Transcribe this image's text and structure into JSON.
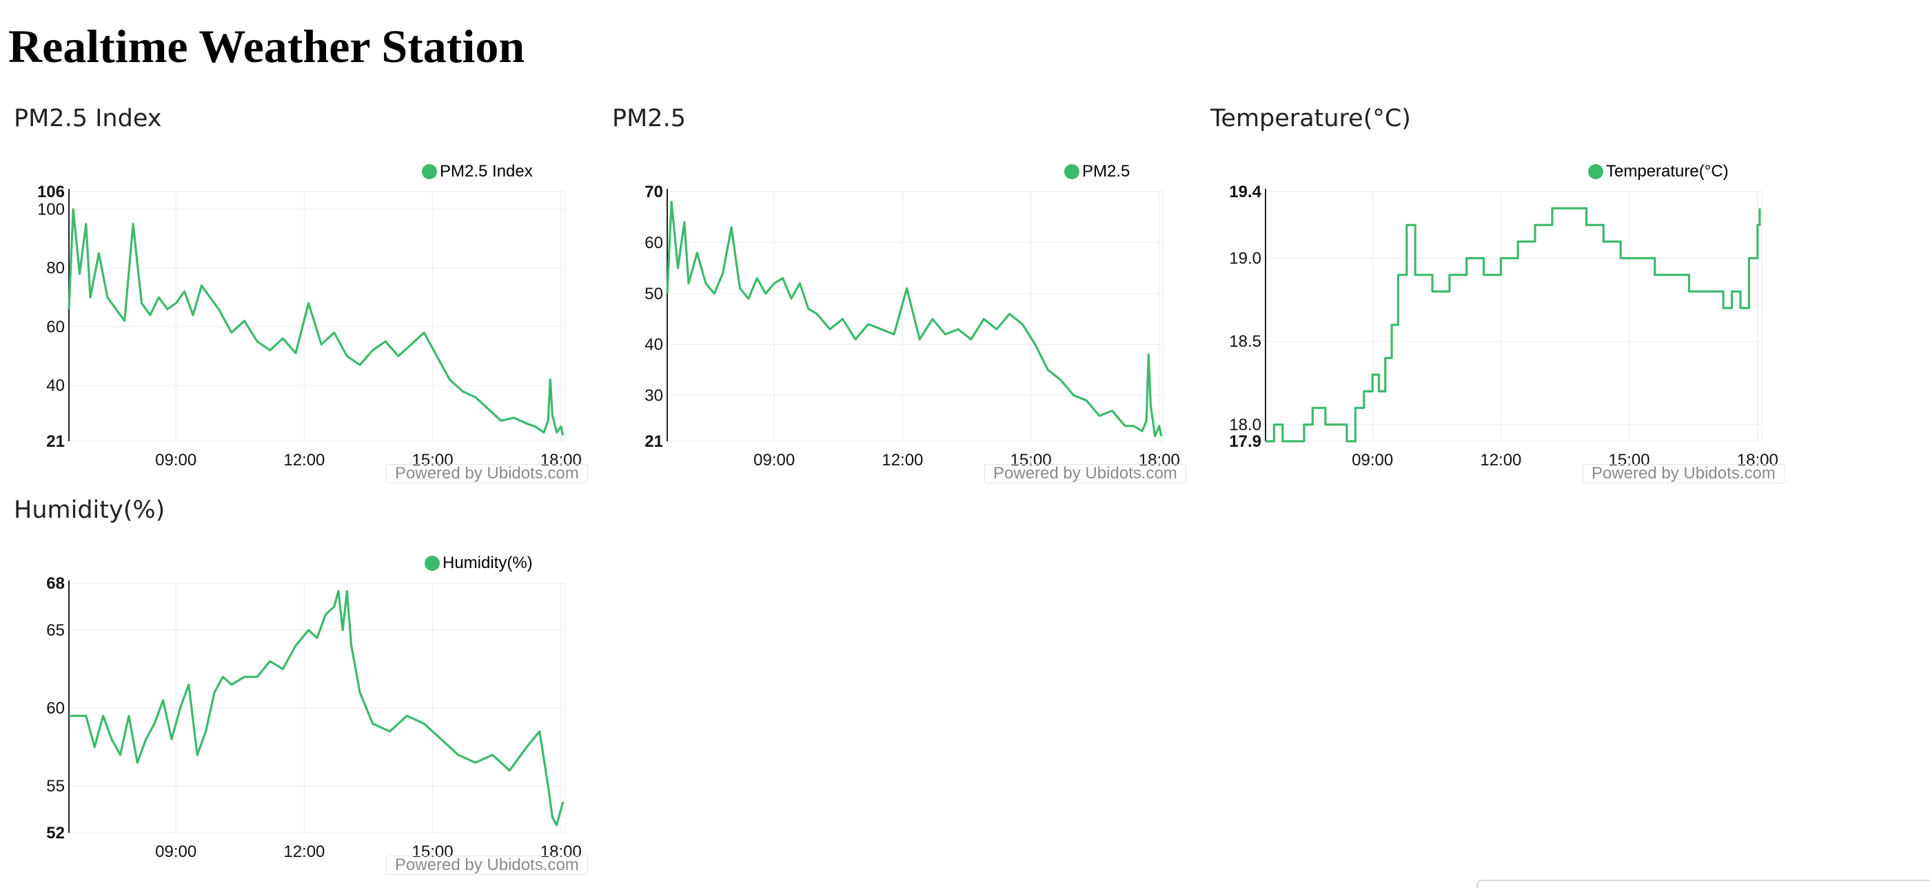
{
  "page": {
    "title": "Realtime Weather Station"
  },
  "colors": {
    "line": "#3cba6b",
    "grid": "#f0f0f0",
    "axis": "#222222"
  },
  "widgets": [
    {
      "title": "PM2.5 Index",
      "legend": "PM2.5 Index",
      "powered_by": "Powered by Ubidots.com"
    },
    {
      "title": "PM2.5",
      "legend": "PM2.5",
      "powered_by": "Powered by Ubidots.com"
    },
    {
      "title": "Temperature(°C)",
      "legend": "Temperature(°C)",
      "powered_by": "Powered by Ubidots.com"
    },
    {
      "title": "Humidity(%)",
      "legend": "Humidity(%)",
      "powered_by": "Powered by Ubidots.com"
    }
  ],
  "chart_data": [
    {
      "type": "line",
      "title": "PM2.5 Index",
      "xlim": [
        6.5,
        18.1
      ],
      "ylim": [
        21,
        106
      ],
      "x_ticks": [
        "09:00",
        "12:00",
        "15:00",
        "18:00"
      ],
      "x_tick_values": [
        9,
        12,
        15,
        18
      ],
      "y_ticks": [
        21,
        40,
        60,
        80,
        100,
        106
      ],
      "y_tick_bold": [
        21,
        106
      ],
      "grid": true,
      "legend_position": "top-right",
      "series": [
        {
          "name": "PM2.5 Index",
          "x": [
            6.5,
            6.6,
            6.75,
            6.9,
            7.0,
            7.2,
            7.4,
            7.6,
            7.8,
            8.0,
            8.2,
            8.4,
            8.6,
            8.8,
            9.0,
            9.2,
            9.4,
            9.6,
            9.8,
            10.0,
            10.3,
            10.6,
            10.9,
            11.2,
            11.5,
            11.8,
            12.1,
            12.4,
            12.7,
            13.0,
            13.3,
            13.6,
            13.9,
            14.2,
            14.5,
            14.8,
            15.1,
            15.4,
            15.7,
            16.0,
            16.3,
            16.6,
            16.9,
            17.2,
            17.4,
            17.6,
            17.7,
            17.75,
            17.8,
            17.9,
            18.0,
            18.05
          ],
          "y": [
            66,
            100,
            78,
            95,
            70,
            85,
            70,
            66,
            62,
            95,
            68,
            64,
            70,
            66,
            68,
            72,
            64,
            74,
            70,
            66,
            58,
            62,
            55,
            52,
            56,
            51,
            68,
            54,
            58,
            50,
            47,
            52,
            55,
            50,
            54,
            58,
            50,
            42,
            38,
            36,
            32,
            28,
            29,
            27,
            26,
            24,
            28,
            42,
            30,
            24,
            26,
            23
          ]
        }
      ]
    },
    {
      "type": "line",
      "title": "PM2.5",
      "xlim": [
        6.5,
        18.1
      ],
      "ylim": [
        21,
        70
      ],
      "x_ticks": [
        "09:00",
        "12:00",
        "15:00",
        "18:00"
      ],
      "x_tick_values": [
        9,
        12,
        15,
        18
      ],
      "y_ticks": [
        21,
        30,
        40,
        50,
        60,
        70
      ],
      "y_tick_bold": [
        21,
        70
      ],
      "grid": true,
      "legend_position": "top-right",
      "series": [
        {
          "name": "PM2.5",
          "x": [
            6.5,
            6.6,
            6.75,
            6.9,
            7.0,
            7.2,
            7.4,
            7.6,
            7.8,
            8.0,
            8.2,
            8.4,
            8.6,
            8.8,
            9.0,
            9.2,
            9.4,
            9.6,
            9.8,
            10.0,
            10.3,
            10.6,
            10.9,
            11.2,
            11.5,
            11.8,
            12.1,
            12.4,
            12.7,
            13.0,
            13.3,
            13.6,
            13.9,
            14.2,
            14.5,
            14.8,
            15.1,
            15.4,
            15.7,
            16.0,
            16.3,
            16.6,
            16.9,
            17.2,
            17.4,
            17.6,
            17.7,
            17.75,
            17.8,
            17.9,
            18.0,
            18.05
          ],
          "y": [
            50,
            68,
            55,
            64,
            52,
            58,
            52,
            50,
            54,
            63,
            51,
            49,
            53,
            50,
            52,
            53,
            49,
            52,
            47,
            46,
            43,
            45,
            41,
            44,
            43,
            42,
            51,
            41,
            45,
            42,
            43,
            41,
            45,
            43,
            46,
            44,
            40,
            35,
            33,
            30,
            29,
            26,
            27,
            24,
            24,
            23,
            25,
            38,
            28,
            22,
            24,
            22
          ]
        }
      ]
    },
    {
      "type": "line",
      "title": "Temperature(°C)",
      "xlim": [
        6.5,
        18.1
      ],
      "ylim": [
        17.9,
        19.4
      ],
      "x_ticks": [
        "09:00",
        "12:00",
        "15:00",
        "18:00"
      ],
      "x_tick_values": [
        9,
        12,
        15,
        18
      ],
      "y_ticks": [
        17.9,
        18.0,
        18.5,
        19.0,
        19.4
      ],
      "y_tick_bold": [
        17.9,
        19.4
      ],
      "grid": true,
      "legend_position": "top-right",
      "step": true,
      "series": [
        {
          "name": "Temperature(°C)",
          "x": [
            6.5,
            6.7,
            6.9,
            7.1,
            7.4,
            7.6,
            7.9,
            8.1,
            8.4,
            8.6,
            8.8,
            9.0,
            9.15,
            9.3,
            9.45,
            9.6,
            9.8,
            10.0,
            10.4,
            10.8,
            11.2,
            11.6,
            12.0,
            12.4,
            12.8,
            13.2,
            13.6,
            14.0,
            14.4,
            14.8,
            15.2,
            15.6,
            16.0,
            16.4,
            16.8,
            17.2,
            17.4,
            17.6,
            17.8,
            18.0,
            18.05
          ],
          "y": [
            17.9,
            18.0,
            17.9,
            17.9,
            18.0,
            18.1,
            18.0,
            18.0,
            17.9,
            18.1,
            18.2,
            18.3,
            18.2,
            18.4,
            18.6,
            18.9,
            19.2,
            18.9,
            18.8,
            18.9,
            19.0,
            18.9,
            19.0,
            19.1,
            19.2,
            19.3,
            19.3,
            19.2,
            19.1,
            19.0,
            19.0,
            18.9,
            18.9,
            18.8,
            18.8,
            18.7,
            18.8,
            18.7,
            19.0,
            19.2,
            19.3
          ]
        }
      ]
    },
    {
      "type": "line",
      "title": "Humidity(%)",
      "xlim": [
        6.5,
        18.1
      ],
      "ylim": [
        52,
        68
      ],
      "x_ticks": [
        "09:00",
        "12:00",
        "15:00",
        "18:00"
      ],
      "x_tick_values": [
        9,
        12,
        15,
        18
      ],
      "y_ticks": [
        52,
        55,
        60,
        65,
        68
      ],
      "y_tick_bold": [
        52,
        68
      ],
      "grid": true,
      "legend_position": "top-right",
      "series": [
        {
          "name": "Humidity(%)",
          "x": [
            6.5,
            6.7,
            6.9,
            7.1,
            7.3,
            7.5,
            7.7,
            7.9,
            8.1,
            8.3,
            8.5,
            8.7,
            8.9,
            9.1,
            9.3,
            9.5,
            9.7,
            9.9,
            10.1,
            10.3,
            10.6,
            10.9,
            11.2,
            11.5,
            11.8,
            12.1,
            12.3,
            12.5,
            12.7,
            12.8,
            12.9,
            13.0,
            13.1,
            13.3,
            13.6,
            14.0,
            14.4,
            14.8,
            15.2,
            15.6,
            16.0,
            16.4,
            16.8,
            17.2,
            17.5,
            17.7,
            17.8,
            17.9,
            18.0,
            18.05
          ],
          "y": [
            59.5,
            59.5,
            59.5,
            57.5,
            59.5,
            58,
            57,
            59.5,
            56.5,
            58,
            59,
            60.5,
            58,
            60,
            61.5,
            57,
            58.5,
            61,
            62,
            61.5,
            62,
            62,
            63,
            62.5,
            64,
            65,
            64.5,
            66,
            66.5,
            67.5,
            65,
            67.5,
            64,
            61,
            59,
            58.5,
            59.5,
            59,
            58,
            57,
            56.5,
            57,
            56,
            57.5,
            58.5,
            55,
            53,
            52.5,
            53.5,
            54
          ]
        }
      ]
    }
  ]
}
